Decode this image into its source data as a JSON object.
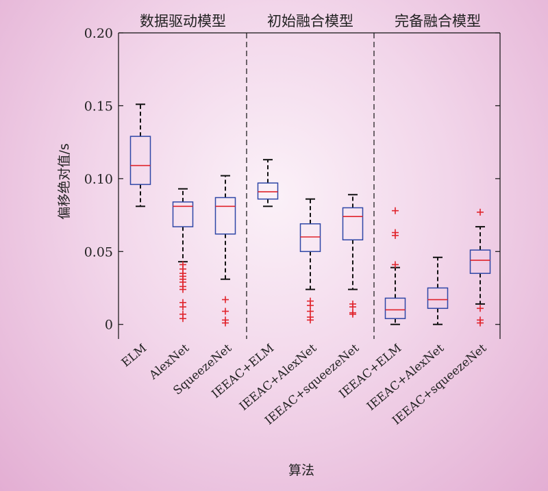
{
  "chart_data": {
    "type": "box",
    "ylabel": "偏移绝对值/s",
    "xlabel": "算法",
    "ylim": [
      -0.01,
      0.2
    ],
    "yticks": [
      {
        "value": 0,
        "label": "0"
      },
      {
        "value": 0.05,
        "label": "0.05"
      },
      {
        "value": 0.1,
        "label": "0.10"
      },
      {
        "value": 0.15,
        "label": "0.15"
      },
      {
        "value": 0.2,
        "label": "0.20"
      }
    ],
    "groups": [
      {
        "label": "数据驱动模型",
        "start": 0,
        "end": 2
      },
      {
        "label": "初始融合模型",
        "start": 3,
        "end": 5
      },
      {
        "label": "完备融合模型",
        "start": 6,
        "end": 8
      }
    ],
    "categories": [
      "ELM",
      "AlexNet",
      "SqueezeNet",
      "IEEAC+ELM",
      "IEEAC+AlexNet",
      "IEEAC+squeezeNet",
      "IEEAC+ELM",
      "IEEAC+AlexNet",
      "IEEAC+squeezeNet"
    ],
    "boxes": [
      {
        "whisker_low": 0.081,
        "q1": 0.096,
        "median": 0.109,
        "q3": 0.129,
        "whisker_high": 0.151,
        "outliers": []
      },
      {
        "whisker_low": 0.043,
        "q1": 0.067,
        "median": 0.081,
        "q3": 0.084,
        "whisker_high": 0.093,
        "outliers": [
          0.041,
          0.038,
          0.035,
          0.033,
          0.031,
          0.029,
          0.026,
          0.024,
          0.015,
          0.012,
          0.007,
          0.004
        ]
      },
      {
        "whisker_low": 0.031,
        "q1": 0.062,
        "median": 0.081,
        "q3": 0.087,
        "whisker_high": 0.102,
        "outliers": [
          0.017,
          0.009,
          0.003,
          0.001
        ]
      },
      {
        "whisker_low": 0.081,
        "q1": 0.086,
        "median": 0.091,
        "q3": 0.097,
        "whisker_high": 0.113,
        "outliers": []
      },
      {
        "whisker_low": 0.024,
        "q1": 0.05,
        "median": 0.06,
        "q3": 0.069,
        "whisker_high": 0.086,
        "outliers": [
          0.016,
          0.013,
          0.009,
          0.005,
          0.003
        ]
      },
      {
        "whisker_low": 0.024,
        "q1": 0.058,
        "median": 0.074,
        "q3": 0.08,
        "whisker_high": 0.089,
        "outliers": [
          0.014,
          0.012,
          0.008,
          0.007
        ]
      },
      {
        "whisker_low": 0.0,
        "q1": 0.004,
        "median": 0.01,
        "q3": 0.018,
        "whisker_high": 0.039,
        "outliers": [
          0.078,
          0.063,
          0.061,
          0.041
        ]
      },
      {
        "whisker_low": 0.0,
        "q1": 0.011,
        "median": 0.017,
        "q3": 0.025,
        "whisker_high": 0.046,
        "outliers": []
      },
      {
        "whisker_low": 0.014,
        "q1": 0.035,
        "median": 0.044,
        "q3": 0.051,
        "whisker_high": 0.067,
        "outliers": [
          0.077,
          0.011,
          0.003,
          0.001
        ]
      }
    ],
    "colors": {
      "box": "#2e46a6",
      "median": "#e0232b",
      "outlier": "#e0232b",
      "whisker": "#111111",
      "axis": "#111111"
    },
    "grid": false,
    "legend": "none"
  }
}
